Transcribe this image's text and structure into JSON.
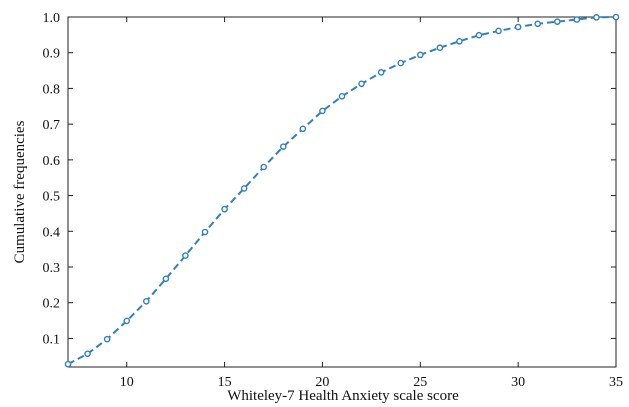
{
  "chart_data": {
    "type": "line",
    "title": "",
    "xlabel": "Whiteley-7 Health Anxiety scale score",
    "ylabel": "Cumulative frequencies",
    "xlim": [
      7,
      35
    ],
    "ylim": [
      0.02,
      1.0
    ],
    "xticks": [
      10,
      15,
      20,
      25,
      30,
      35
    ],
    "yticks": [
      0.1,
      0.2,
      0.3,
      0.4,
      0.5,
      0.6,
      0.7,
      0.8,
      0.9,
      1.0
    ],
    "xtick_labels": [
      "10",
      "15",
      "20",
      "25",
      "30",
      "35"
    ],
    "ytick_labels": [
      "0.1",
      "0.2",
      "0.3",
      "0.4",
      "0.5",
      "0.6",
      "0.7",
      "0.8",
      "0.9",
      "1.0"
    ],
    "grid": false,
    "series": [
      {
        "color": "#2f7fc1",
        "line_style": "dashed",
        "marker": "open-circle",
        "x": [
          7,
          8,
          9,
          10,
          11,
          12,
          13,
          14,
          15,
          16,
          17,
          18,
          19,
          20,
          21,
          22,
          23,
          24,
          25,
          26,
          27,
          28,
          29,
          30,
          31,
          32,
          33,
          34,
          35
        ],
        "y": [
          0.028,
          0.057,
          0.098,
          0.149,
          0.204,
          0.267,
          0.332,
          0.398,
          0.462,
          0.52,
          0.58,
          0.637,
          0.687,
          0.737,
          0.778,
          0.813,
          0.845,
          0.871,
          0.894,
          0.914,
          0.932,
          0.949,
          0.961,
          0.972,
          0.981,
          0.987,
          0.993,
          0.999,
          1.0
        ]
      }
    ]
  }
}
